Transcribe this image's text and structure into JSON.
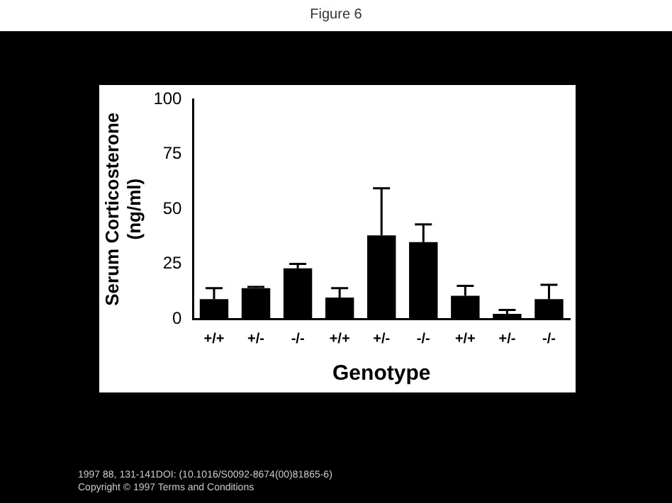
{
  "chart_data": {
    "type": "bar",
    "title": "Figure 6",
    "xlabel": "Genotype",
    "ylabel": "Serum Corticosterone (ng/ml)",
    "categories": [
      "+/+",
      "+/-",
      "-/-",
      "+/+",
      "+/-",
      "-/-",
      "+/+",
      "+/-",
      "-/-"
    ],
    "values": [
      9,
      14,
      23,
      9.7,
      38,
      35,
      10.5,
      2.3,
      9
    ],
    "errors": [
      [
        9,
        14
      ],
      [
        14,
        14.5
      ],
      [
        23,
        25
      ],
      [
        9.7,
        14
      ],
      [
        38,
        59.5
      ],
      [
        35,
        43
      ],
      [
        10.5,
        15
      ],
      [
        2.3,
        4
      ],
      [
        9,
        15.5
      ]
    ],
    "color": "#000000",
    "ylim": [
      0,
      100
    ],
    "yticks": [
      0,
      25,
      50,
      75,
      100
    ],
    "grid": false,
    "annotations": [
      "1997 88, 131-141DOI: (10.1016/S0092-8674(00)81865-6)",
      "Copyright © 1997 Terms and Conditions"
    ]
  }
}
